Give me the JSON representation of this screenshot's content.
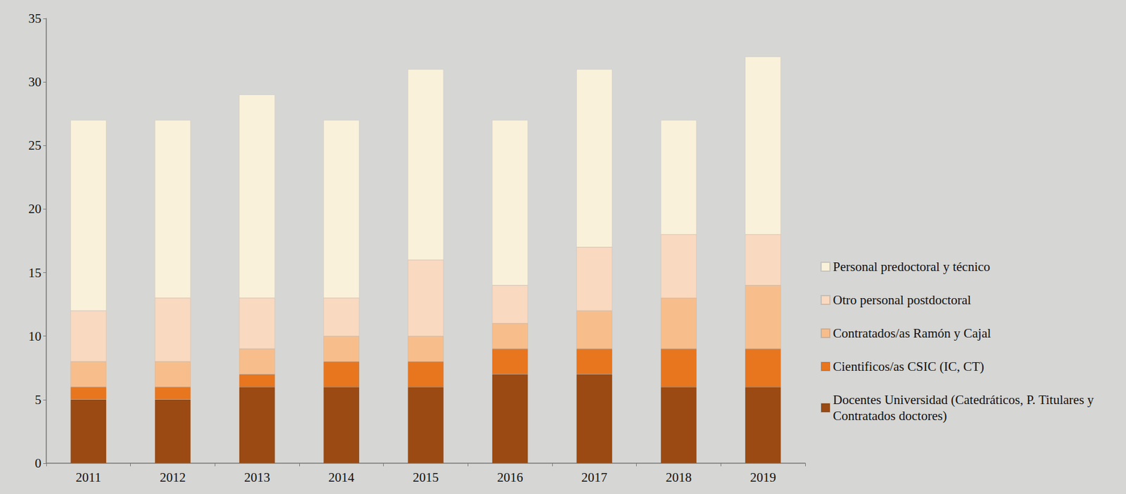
{
  "chart_data": {
    "type": "bar",
    "stacked": true,
    "grid": false,
    "legend": "right",
    "categories": [
      "2011",
      "2012",
      "2013",
      "2014",
      "2015",
      "2016",
      "2017",
      "2018",
      "2019"
    ],
    "ylim": [
      0,
      35
    ],
    "yticks": [
      0,
      5,
      10,
      15,
      20,
      25,
      30,
      35
    ],
    "series": [
      {
        "name": "Docentes Universidad (Catedráticos, P. Titulares y Contratados doctores)",
        "color": "#9a4a12",
        "values": [
          5,
          5,
          6,
          6,
          6,
          7,
          7,
          6,
          6
        ]
      },
      {
        "name": "Cientificos/as CSIC (IC, CT)",
        "color": "#e8761f",
        "values": [
          1,
          1,
          1,
          2,
          2,
          2,
          2,
          3,
          3
        ]
      },
      {
        "name": "Contratados/as Ramón y Cajal",
        "color": "#f7be8c",
        "values": [
          2,
          2,
          2,
          2,
          2,
          2,
          3,
          4,
          5
        ]
      },
      {
        "name": "Otro personal postdoctoral",
        "color": "#f9d9c0",
        "values": [
          4,
          5,
          4,
          3,
          6,
          3,
          5,
          5,
          4
        ]
      },
      {
        "name": "Personal predoctoral y técnico",
        "color": "#faf1da",
        "values": [
          15,
          14,
          16,
          14,
          15,
          13,
          14,
          9,
          14
        ]
      }
    ]
  }
}
